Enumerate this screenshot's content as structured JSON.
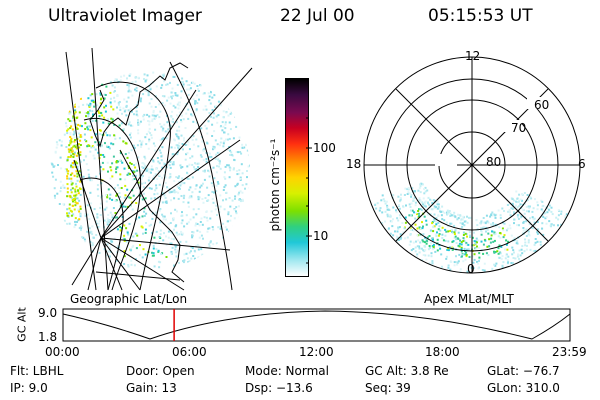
{
  "header": {
    "instrument": "Ultraviolet Imager",
    "date": "22 Jul 00",
    "time": "05:15:53 UT"
  },
  "geo_panel": {
    "label": "Geographic Lat/Lon"
  },
  "colorbar": {
    "unit_label": "photon cm⁻²s⁻¹",
    "ticks": [
      "100",
      "10"
    ],
    "colors": [
      "#000000",
      "#3a0a40",
      "#7a0a50",
      "#c80020",
      "#ff3010",
      "#ff8c00",
      "#ffd200",
      "#d8f000",
      "#7de000",
      "#30d080",
      "#20c8d8",
      "#a0e8f0",
      "#ffffff"
    ]
  },
  "polar_panel": {
    "label": "Apex MLat/MLT",
    "mlt_labels": [
      "12",
      "18",
      "6",
      "0"
    ],
    "lat_labels": [
      "60",
      "70",
      "80"
    ]
  },
  "orbit_plot": {
    "ylabel": "GC Alt",
    "yticks": [
      "9.0",
      "1.8"
    ],
    "xticks": [
      "00:00",
      "06:00",
      "12:00",
      "18:00",
      "23:59"
    ],
    "marker_time_hours": 5.26,
    "marker_color": "#e00000"
  },
  "info": {
    "filter": "Flt: LBHL",
    "ip": "IP:  9.0",
    "door": "Door: Open",
    "gain": "Gain: 13",
    "mode": "Mode: Normal",
    "dsp": "Dsp:  −13.6",
    "gc_alt": "GC Alt: 3.8 Re",
    "seq": "Seq: 39",
    "glat": "GLat: −76.7",
    "glon": "GLon: 310.0"
  }
}
